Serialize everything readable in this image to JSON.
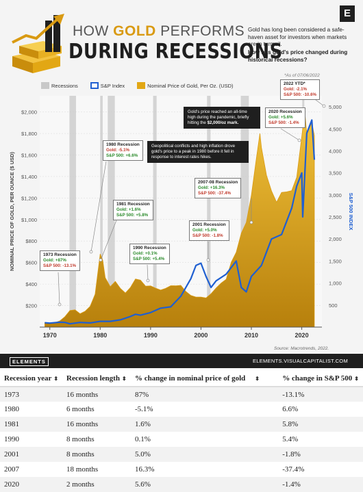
{
  "header": {
    "title_pre": "HOW ",
    "title_gold": "GOLD",
    "title_post": " PERFORMS",
    "title_line2": "DURING RECESSIONS",
    "intro": "Gold has long been considered a safe-haven asset for investors when markets are in turmoil.",
    "question": "How has gold's price changed during historical recessions?",
    "brand_letter": "E",
    "as_of": "*As of 07/06/2022"
  },
  "legend": {
    "recessions": "Recessions",
    "sp": "S&P Index",
    "gold": "Nominal Price of Gold, Per Oz. (USD)"
  },
  "callouts": [
    {
      "id": "c1973",
      "title": "1973 Recession",
      "gold": "Gold: +87%",
      "sp": "S&P 500: -13.1%",
      "gold_sign": "pos",
      "sp_sign": "neg"
    },
    {
      "id": "c1980",
      "title": "1980 Recession",
      "gold": "Gold: -5.1%",
      "sp": "S&P 500: +6.6%",
      "gold_sign": "neg",
      "sp_sign": "pos"
    },
    {
      "id": "c1981",
      "title": "1981 Recession",
      "gold": "Gold: +1.6%",
      "sp": "S&P 500: +5.8%",
      "gold_sign": "pos",
      "sp_sign": "pos"
    },
    {
      "id": "c1990",
      "title": "1990 Recession",
      "gold": "Gold: +0.1%",
      "sp": "S&P 500: +5.4%",
      "gold_sign": "pos",
      "sp_sign": "pos"
    },
    {
      "id": "c2001",
      "title": "2001 Recession",
      "gold": "Gold: +5.0%",
      "sp": "S&P 500: -1.8%",
      "gold_sign": "pos",
      "sp_sign": "neg"
    },
    {
      "id": "c2007",
      "title": "2007-08 Recession",
      "gold": "Gold: +16.3%",
      "sp": "S&P 500: -37.4%",
      "gold_sign": "pos",
      "sp_sign": "neg"
    },
    {
      "id": "c2020",
      "title": "2020 Recession",
      "gold": "Gold: +5.6%",
      "sp": "S&P 500: -1.4%",
      "gold_sign": "pos",
      "sp_sign": "neg"
    },
    {
      "id": "c2022",
      "title": "2022 YTD*",
      "gold": "Gold: -2.1%",
      "sp": "S&P 500: -10.6%",
      "gold_sign": "neg",
      "sp_sign": "neg"
    }
  ],
  "notes": {
    "n1980_pre": "Geopolitical conflicts and high inflation drove gold's price to a peak in 1980 before it fell in response to interest rates hikes.",
    "n2020_pre": "Gold's price reached an all-time high during the pandemic, briefly hitting the ",
    "n2020_bold": "$2,000/oz mark."
  },
  "source": "Source: Macrotrends, 2022.",
  "footer": {
    "left": "ELEMENTS",
    "right": "ELEMENTS.VISUALCAPITALIST.COM"
  },
  "chart_data": {
    "type": "area",
    "xlabel": "",
    "ylabel": "NOMINAL PRICE OF GOLD, PER OUNCE ($ USD)",
    "y2label": "S&P 500 INDEX",
    "xlim": [
      1968,
      2024
    ],
    "ylim": [
      0,
      2150
    ],
    "y2lim": [
      0,
      5250
    ],
    "x_ticks": [
      1970,
      1980,
      1990,
      2000,
      2010,
      2020
    ],
    "y_ticks": [
      "$200",
      "$400",
      "$600",
      "$800",
      "$1,000",
      "$1,200",
      "$1,400",
      "$1,600",
      "$1,800",
      "$2,000"
    ],
    "y2_ticks": [
      "500",
      "1,000",
      "1,500",
      "2,000",
      "2,500",
      "3,000",
      "3,500",
      "4,000",
      "4,500",
      "5,000"
    ],
    "recessions": [
      [
        1973.9,
        1975.2
      ],
      [
        1980.0,
        1980.5
      ],
      [
        1981.5,
        1982.9
      ],
      [
        1990.5,
        1991.2
      ],
      [
        2001.2,
        2001.9
      ],
      [
        2007.9,
        2009.5
      ],
      [
        2020.1,
        2020.3
      ]
    ],
    "series": [
      {
        "name": "Nominal Price of Gold, Per Oz. (USD)",
        "color": "#e2a714",
        "x": [
          1969,
          1970,
          1971,
          1972,
          1973,
          1974,
          1975,
          1976,
          1977,
          1978,
          1979,
          1980,
          1980.5,
          1981,
          1982,
          1983,
          1984,
          1985,
          1986,
          1987,
          1988,
          1989,
          1990,
          1991,
          1992,
          1993,
          1994,
          1995,
          1996,
          1997,
          1998,
          1999,
          2000,
          2001,
          2002,
          2003,
          2004,
          2005,
          2006,
          2007,
          2008,
          2009,
          2010,
          2011,
          2011.7,
          2012,
          2013,
          2014,
          2015,
          2016,
          2017,
          2018,
          2019,
          2020,
          2020.6,
          2021,
          2022,
          2022.5
        ],
        "values": [
          41,
          37,
          41,
          58,
          97,
          154,
          160,
          124,
          147,
          193,
          306,
          680,
          620,
          460,
          376,
          424,
          360,
          317,
          368,
          447,
          437,
          381,
          383,
          362,
          344,
          360,
          385,
          384,
          388,
          331,
          294,
          279,
          279,
          271,
          310,
          363,
          409,
          444,
          603,
          695,
          872,
          972,
          1225,
          1572,
          1800,
          1669,
          1411,
          1266,
          1160,
          1251,
          1257,
          1268,
          1393,
          1770,
          2000,
          1800,
          1900,
          1780
        ]
      },
      {
        "name": "S&P Index",
        "color": "#1f5fd1",
        "x": [
          1969,
          1970,
          1972,
          1973,
          1974,
          1976,
          1978,
          1980,
          1982,
          1984,
          1986,
          1987,
          1988,
          1990,
          1992,
          1994,
          1996,
          1998,
          1999,
          2000,
          2001,
          2002,
          2003,
          2005,
          2007,
          2008,
          2009,
          2010,
          2012,
          2014,
          2016,
          2018,
          2019,
          2020,
          2020.2,
          2021,
          2022,
          2022.5
        ],
        "values": [
          100,
          90,
          110,
          105,
          75,
          105,
          95,
          130,
          130,
          165,
          240,
          290,
          270,
          330,
          430,
          460,
          700,
          1100,
          1400,
          1450,
          1150,
          900,
          1050,
          1200,
          1500,
          900,
          800,
          1150,
          1400,
          2000,
          2100,
          2700,
          3200,
          3500,
          2500,
          4400,
          4700,
          3800
        ]
      }
    ]
  },
  "table": {
    "headers": [
      "Recession year",
      "Recession length",
      "% change in nominal price of gold",
      "% change in S&P 500"
    ],
    "rows": [
      [
        "1973",
        "16 months",
        "87%",
        "-13.1%"
      ],
      [
        "1980",
        "6 months",
        "-5.1%",
        "6.6%"
      ],
      [
        "1981",
        "16 months",
        "1.6%",
        "5.8%"
      ],
      [
        "1990",
        "8 months",
        "0.1%",
        "5.4%"
      ],
      [
        "2001",
        "8 months",
        "5.0%",
        "-1.8%"
      ],
      [
        "2007",
        "18 months",
        "16.3%",
        "-37.4%"
      ],
      [
        "2020",
        "2 months",
        "5.6%",
        "-1.4%"
      ]
    ],
    "sort_indicator": "⬍"
  },
  "colors": {
    "gold": "#e2a714",
    "sp": "#1f5fd1",
    "recession": "#c8c8c8",
    "dark": "#1f1f1f"
  }
}
